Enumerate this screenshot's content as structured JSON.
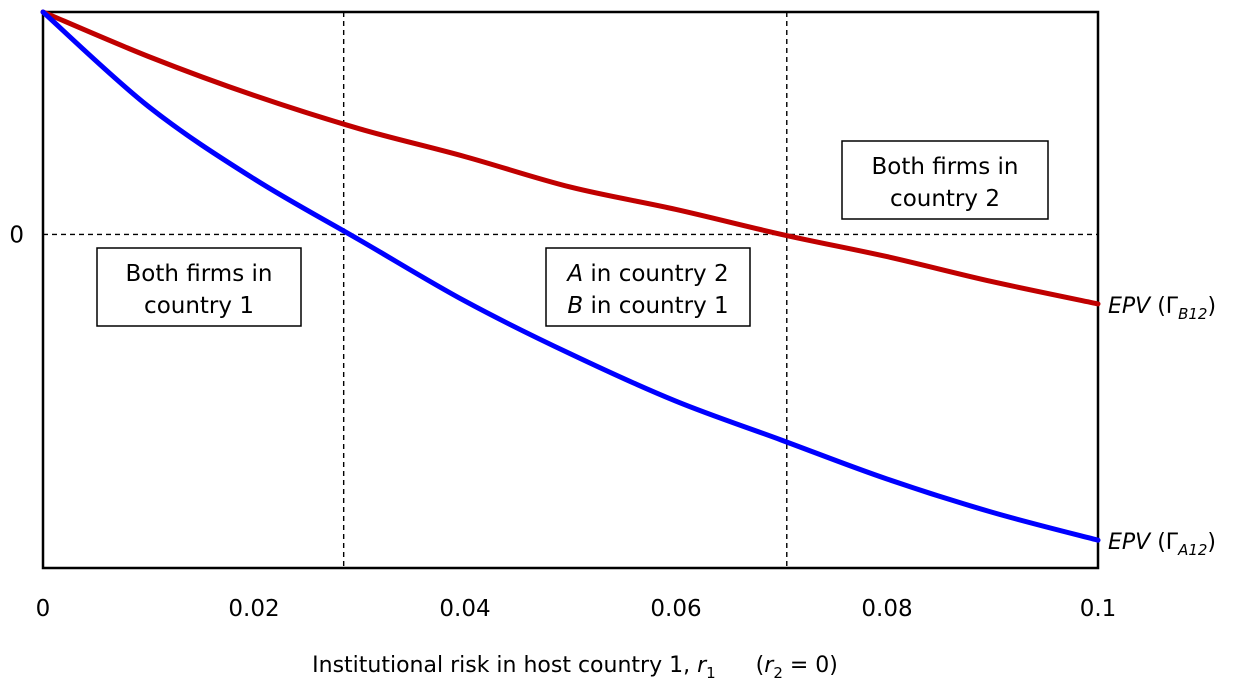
{
  "chart_data": {
    "type": "line",
    "xlabel": {
      "prefix": "Institutional risk in host country 1, ",
      "var": "r",
      "var_sub": "1",
      "note_open": "(",
      "note_var": "r",
      "note_sub": "2",
      "note_rest": " = 0)"
    },
    "x_ticks": [
      "0",
      "0.02",
      "0.04",
      "0.06",
      "0.08",
      "0.1"
    ],
    "y_ticks": [
      "0"
    ],
    "xlim": [
      0,
      0.1
    ],
    "ylim": [
      -0.6,
      0.4
    ],
    "grid": false,
    "thresholds": [
      0.0285,
      0.0705
    ],
    "zero_line": true,
    "x": [
      0,
      0.01,
      0.02,
      0.03,
      0.04,
      0.05,
      0.06,
      0.07,
      0.08,
      0.09,
      0.1
    ],
    "series": [
      {
        "label_italic": "EPV",
        "label_paren": " (Γ",
        "label_sub": "B12",
        "label_close": ")",
        "color": "#c00000",
        "values": [
          0.4,
          0.32,
          0.25,
          0.19,
          0.14,
          0.085,
          0.045,
          0.0,
          -0.04,
          -0.085,
          -0.125
        ]
      },
      {
        "label_italic": "EPV",
        "label_paren": " (Γ",
        "label_sub": "A12",
        "label_close": ")",
        "color": "#0000ff",
        "values": [
          0.4,
          0.23,
          0.1,
          -0.01,
          -0.12,
          -0.215,
          -0.3,
          -0.37,
          -0.44,
          -0.5,
          -0.55
        ]
      }
    ],
    "regions": [
      {
        "lines": [
          {
            "text": "Both firms in"
          },
          {
            "text": "country 1"
          }
        ]
      },
      {
        "lines": [
          {
            "italic": "A",
            "text": " in country 2"
          },
          {
            "italic": "B",
            "text": " in country 1"
          }
        ]
      },
      {
        "lines": [
          {
            "text": "Both firms in"
          },
          {
            "text": "country 2"
          }
        ]
      }
    ]
  }
}
